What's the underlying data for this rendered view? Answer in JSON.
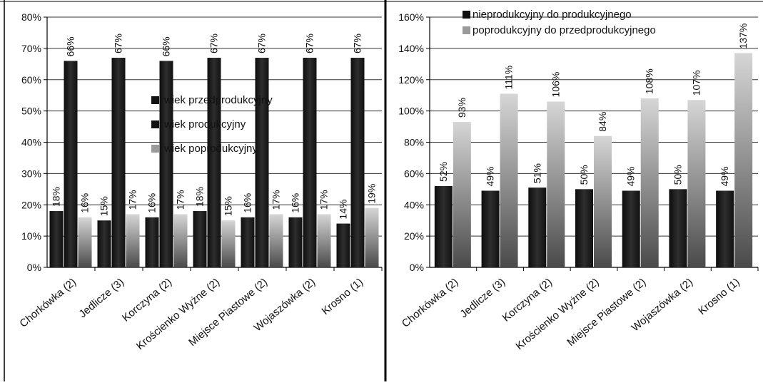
{
  "chart_data": [
    {
      "type": "bar",
      "title": "",
      "xlabel": "",
      "ylabel": "",
      "ylim": [
        0,
        0.8
      ],
      "ytick_step": 0.1,
      "categories": [
        "Chorkówka (2)",
        "Jedlicze (3)",
        "Korczyna (2)",
        "Krościenko Wyżne (2)",
        "Miejsce Piastowe (2)",
        "Wojaszówka (2)",
        "Krosno (1)"
      ],
      "series": [
        {
          "name": "wiek przedprodukcyjny",
          "values": [
            0.18,
            0.15,
            0.16,
            0.18,
            0.16,
            0.16,
            0.14
          ],
          "labels": [
            "18%",
            "15%",
            "16%",
            "18%",
            "16%",
            "16%",
            "14%"
          ],
          "color": "#1a1a1a"
        },
        {
          "name": "wiek produkcyjny",
          "values": [
            0.66,
            0.67,
            0.66,
            0.67,
            0.67,
            0.67,
            0.67
          ],
          "labels": [
            "66%",
            "67%",
            "66%",
            "67%",
            "67%",
            "67%",
            "67%"
          ],
          "color": "#2b2b2b"
        },
        {
          "name": "wiek poprodukcyjny",
          "values": [
            0.16,
            0.17,
            0.17,
            0.15,
            0.17,
            0.17,
            0.19
          ],
          "labels": [
            "16%",
            "17%",
            "17%",
            "15%",
            "17%",
            "17%",
            "19%"
          ],
          "color": "#8a8a8a"
        }
      ],
      "legend_position": "center-right",
      "grid": true
    },
    {
      "type": "bar",
      "title": "",
      "xlabel": "",
      "ylabel": "",
      "ylim": [
        0,
        1.6
      ],
      "ytick_step": 0.2,
      "categories": [
        "Chorkówka (2)",
        "Jedlicze (3)",
        "Korczyna (2)",
        "Krościenko Wyżne (2)",
        "Miejsce Piastowe (2)",
        "Wojaszówka (2)",
        "Krosno (1)"
      ],
      "series": [
        {
          "name": "nieprodukcyjny do produkcyjnego",
          "values": [
            0.52,
            0.49,
            0.51,
            0.5,
            0.49,
            0.5,
            0.49
          ],
          "labels": [
            "52%",
            "49%",
            "51%",
            "50%",
            "49%",
            "50%",
            "49%"
          ],
          "color": "#1a1a1a"
        },
        {
          "name": "poprodukcyjny do przedprodukcyjnego",
          "values": [
            0.93,
            1.11,
            1.06,
            0.84,
            1.08,
            1.07,
            1.37
          ],
          "labels": [
            "93%",
            "111%",
            "106%",
            "84%",
            "108%",
            "107%",
            "137%"
          ],
          "color": "#8a8a8a"
        }
      ],
      "legend_position": "top-left",
      "grid": true
    }
  ]
}
